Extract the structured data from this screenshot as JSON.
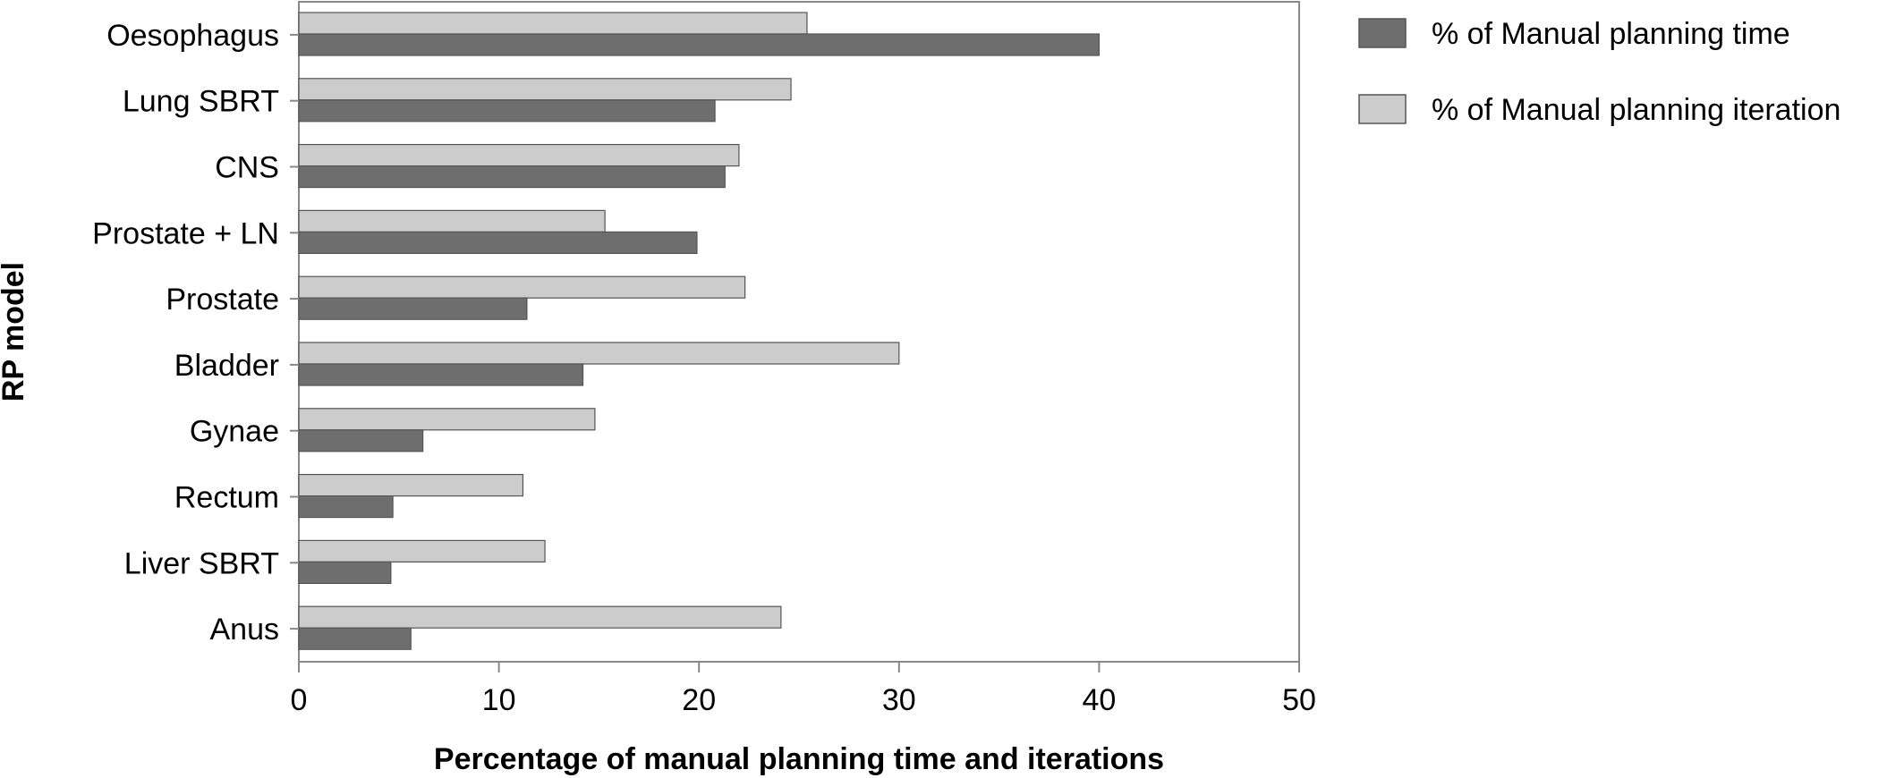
{
  "chart_data": {
    "type": "bar",
    "orientation": "horizontal",
    "categories": [
      "Oesophagus",
      "Lung SBRT",
      "CNS",
      "Prostate + LN",
      "Prostate",
      "Bladder",
      "Gynae",
      "Rectum",
      "Liver SBRT",
      "Anus"
    ],
    "series": [
      {
        "name": "% of Manual planning iteration",
        "color": "#cccccc",
        "values": [
          25.4,
          24.6,
          22.0,
          15.3,
          22.3,
          30.0,
          14.8,
          11.2,
          12.3,
          24.1
        ]
      },
      {
        "name": "% of Manual planning time",
        "color": "#6e6e6e",
        "values": [
          40.0,
          20.8,
          21.3,
          19.9,
          11.4,
          14.2,
          6.2,
          4.7,
          4.6,
          5.6
        ]
      }
    ],
    "x_ticks": [
      "0",
      "10",
      "20",
      "30",
      "40",
      "50"
    ],
    "xlim": [
      0,
      50
    ],
    "xlabel": "Percentage of manual planning time and iterations",
    "ylabel": "RP model",
    "legend": {
      "position": "top-right",
      "entries": [
        "% of Manual planning time",
        "% of Manual planning iteration"
      ]
    },
    "grid": false
  }
}
